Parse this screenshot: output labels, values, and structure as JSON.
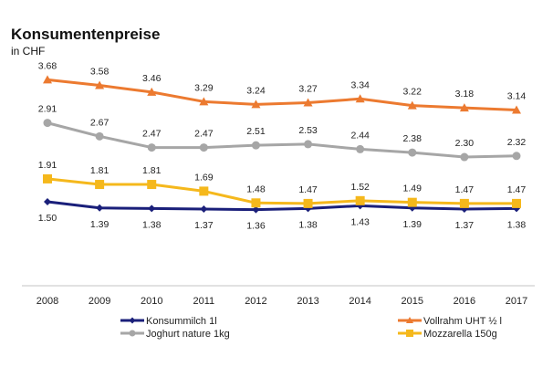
{
  "chart_data": {
    "type": "line",
    "title": "Konsumentenpreise",
    "subtitle": "in CHF",
    "xlabel": "",
    "ylabel": "",
    "x": [
      "2008",
      "2009",
      "2010",
      "2011",
      "2012",
      "2013",
      "2014",
      "2015",
      "2016",
      "2017"
    ],
    "ylim": [
      0,
      3.9
    ],
    "grid": false,
    "legend_position": "bottom",
    "series": [
      {
        "name": "Konsummilch 1l",
        "color": "#1a1f7a",
        "marker": "diamond",
        "label_position": "below",
        "values": [
          1.5,
          1.39,
          1.38,
          1.37,
          1.36,
          1.38,
          1.43,
          1.39,
          1.37,
          1.38
        ]
      },
      {
        "name": "Vollrahm UHT ½ l",
        "color": "#ec7a30",
        "marker": "triangle",
        "label_position": "above",
        "values": [
          3.68,
          3.58,
          3.46,
          3.29,
          3.24,
          3.27,
          3.34,
          3.22,
          3.18,
          3.14
        ]
      },
      {
        "name": "Joghurt nature 1kg",
        "color": "#a6a6a6",
        "marker": "circle",
        "label_position": "above",
        "values": [
          2.91,
          2.67,
          2.47,
          2.47,
          2.51,
          2.53,
          2.44,
          2.38,
          2.3,
          2.32
        ]
      },
      {
        "name": "Mozzarella 150g",
        "color": "#f5b81c",
        "marker": "square",
        "label_position": "above",
        "values": [
          1.91,
          1.81,
          1.81,
          1.69,
          1.48,
          1.47,
          1.52,
          1.49,
          1.47,
          1.47
        ]
      }
    ]
  },
  "axis_color": "#d9d9d9"
}
